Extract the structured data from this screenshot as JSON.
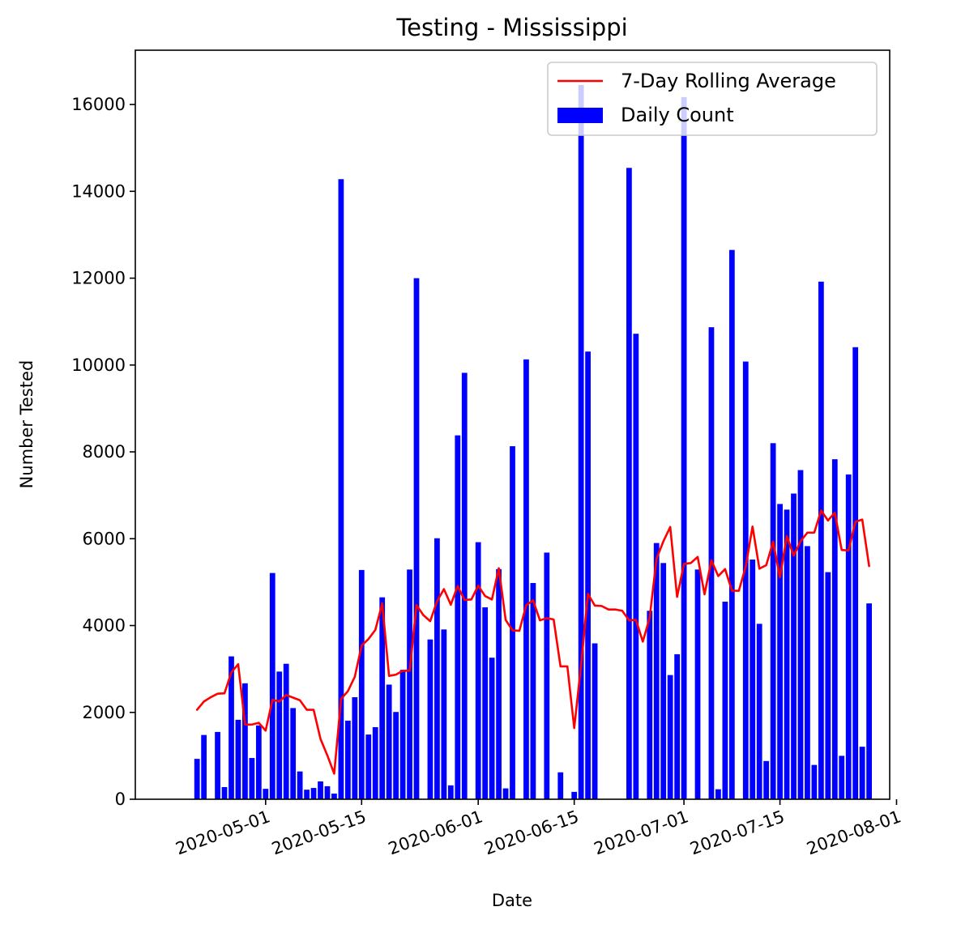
{
  "chart_data": {
    "type": "bar",
    "title": "Testing - Mississippi",
    "xlabel": "Date",
    "ylabel": "Number Tested",
    "x_axis": {
      "type": "date",
      "range": [
        "2020-04-12",
        "2020-07-31"
      ],
      "ticks": [
        "2020-05-01",
        "2020-05-15",
        "2020-06-01",
        "2020-06-15",
        "2020-07-01",
        "2020-07-15",
        "2020-08-01"
      ]
    },
    "y_axis": {
      "range": [
        0,
        17250
      ],
      "ticks": [
        0,
        2000,
        4000,
        6000,
        8000,
        10000,
        12000,
        14000,
        16000
      ]
    },
    "grid": false,
    "legend": {
      "position": "top-right",
      "entries": [
        {
          "label": "7-Day Rolling Average",
          "kind": "line",
          "color": "#ff0000"
        },
        {
          "label": "Daily Count",
          "kind": "bar",
          "color": "#0000ff"
        }
      ]
    },
    "series": [
      {
        "name": "Daily Count",
        "kind": "bar",
        "color": "#0000ff",
        "points": [
          [
            "2020-04-21",
            930
          ],
          [
            "2020-04-22",
            1480
          ],
          [
            "2020-04-24",
            1550
          ],
          [
            "2020-04-25",
            280
          ],
          [
            "2020-04-26",
            3290
          ],
          [
            "2020-04-27",
            1830
          ],
          [
            "2020-04-28",
            2670
          ],
          [
            "2020-04-29",
            950
          ],
          [
            "2020-04-30",
            1700
          ],
          [
            "2020-05-01",
            240
          ],
          [
            "2020-05-02",
            5210
          ],
          [
            "2020-05-03",
            2940
          ],
          [
            "2020-05-04",
            3120
          ],
          [
            "2020-05-05",
            2100
          ],
          [
            "2020-05-06",
            640
          ],
          [
            "2020-05-07",
            220
          ],
          [
            "2020-05-08",
            260
          ],
          [
            "2020-05-09",
            410
          ],
          [
            "2020-05-10",
            300
          ],
          [
            "2020-05-11",
            130
          ],
          [
            "2020-05-12",
            14280
          ],
          [
            "2020-05-13",
            1810
          ],
          [
            "2020-05-14",
            2350
          ],
          [
            "2020-05-15",
            5280
          ],
          [
            "2020-05-16",
            1490
          ],
          [
            "2020-05-17",
            1660
          ],
          [
            "2020-05-18",
            4650
          ],
          [
            "2020-05-19",
            2640
          ],
          [
            "2020-05-20",
            2010
          ],
          [
            "2020-05-21",
            2980
          ],
          [
            "2020-05-22",
            5290
          ],
          [
            "2020-05-23",
            12000
          ],
          [
            "2020-05-25",
            3680
          ],
          [
            "2020-05-26",
            6010
          ],
          [
            "2020-05-27",
            3910
          ],
          [
            "2020-05-28",
            320
          ],
          [
            "2020-05-29",
            8380
          ],
          [
            "2020-05-30",
            9820
          ],
          [
            "2020-06-01",
            5920
          ],
          [
            "2020-06-02",
            4420
          ],
          [
            "2020-06-03",
            3260
          ],
          [
            "2020-06-04",
            5300
          ],
          [
            "2020-06-05",
            250
          ],
          [
            "2020-06-06",
            8130
          ],
          [
            "2020-06-08",
            10130
          ],
          [
            "2020-06-09",
            4980
          ],
          [
            "2020-06-11",
            5680
          ],
          [
            "2020-06-13",
            620
          ],
          [
            "2020-06-15",
            170
          ],
          [
            "2020-06-16",
            16450
          ],
          [
            "2020-06-17",
            10310
          ],
          [
            "2020-06-18",
            3590
          ],
          [
            "2020-06-23",
            14540
          ],
          [
            "2020-06-24",
            10720
          ],
          [
            "2020-06-26",
            4340
          ],
          [
            "2020-06-27",
            5900
          ],
          [
            "2020-06-28",
            5440
          ],
          [
            "2020-06-29",
            2860
          ],
          [
            "2020-06-30",
            3340
          ],
          [
            "2020-07-01",
            16170
          ],
          [
            "2020-07-03",
            5290
          ],
          [
            "2020-07-05",
            10870
          ],
          [
            "2020-07-06",
            230
          ],
          [
            "2020-07-07",
            4550
          ],
          [
            "2020-07-08",
            12650
          ],
          [
            "2020-07-10",
            10080
          ],
          [
            "2020-07-11",
            5520
          ],
          [
            "2020-07-12",
            4040
          ],
          [
            "2020-07-13",
            880
          ],
          [
            "2020-07-14",
            8200
          ],
          [
            "2020-07-15",
            6800
          ],
          [
            "2020-07-16",
            6670
          ],
          [
            "2020-07-17",
            7040
          ],
          [
            "2020-07-18",
            7580
          ],
          [
            "2020-07-19",
            5830
          ],
          [
            "2020-07-20",
            790
          ],
          [
            "2020-07-21",
            11920
          ],
          [
            "2020-07-22",
            5230
          ],
          [
            "2020-07-23",
            7830
          ],
          [
            "2020-07-24",
            1000
          ],
          [
            "2020-07-25",
            7480
          ],
          [
            "2020-07-26",
            10410
          ],
          [
            "2020-07-27",
            1210
          ],
          [
            "2020-07-28",
            4510
          ]
        ]
      },
      {
        "name": "7-Day Rolling Average",
        "kind": "line",
        "color": "#ff0000",
        "points": [
          [
            "2020-04-21",
            2060
          ],
          [
            "2020-04-22",
            2250
          ],
          [
            "2020-04-23",
            2350
          ],
          [
            "2020-04-24",
            2430
          ],
          [
            "2020-04-25",
            2440
          ],
          [
            "2020-04-26",
            2920
          ],
          [
            "2020-04-27",
            3110
          ],
          [
            "2020-04-28",
            1720
          ],
          [
            "2020-04-29",
            1720
          ],
          [
            "2020-04-30",
            1760
          ],
          [
            "2020-05-01",
            1580
          ],
          [
            "2020-05-02",
            2290
          ],
          [
            "2020-05-03",
            2250
          ],
          [
            "2020-05-04",
            2400
          ],
          [
            "2020-05-05",
            2340
          ],
          [
            "2020-05-06",
            2280
          ],
          [
            "2020-05-07",
            2060
          ],
          [
            "2020-05-08",
            2060
          ],
          [
            "2020-05-09",
            1390
          ],
          [
            "2020-05-10",
            1010
          ],
          [
            "2020-05-11",
            590
          ],
          [
            "2020-05-12",
            2310
          ],
          [
            "2020-05-13",
            2490
          ],
          [
            "2020-05-14",
            2820
          ],
          [
            "2020-05-15",
            3540
          ],
          [
            "2020-05-16",
            3690
          ],
          [
            "2020-05-17",
            3900
          ],
          [
            "2020-05-18",
            4510
          ],
          [
            "2020-05-19",
            2840
          ],
          [
            "2020-05-20",
            2870
          ],
          [
            "2020-05-21",
            2960
          ],
          [
            "2020-05-22",
            2960
          ],
          [
            "2020-05-23",
            4470
          ],
          [
            "2020-05-24",
            4240
          ],
          [
            "2020-05-25",
            4100
          ],
          [
            "2020-05-26",
            4560
          ],
          [
            "2020-05-27",
            4840
          ],
          [
            "2020-05-28",
            4480
          ],
          [
            "2020-05-29",
            4910
          ],
          [
            "2020-05-30",
            4590
          ],
          [
            "2020-05-31",
            4600
          ],
          [
            "2020-06-01",
            4920
          ],
          [
            "2020-06-02",
            4680
          ],
          [
            "2020-06-03",
            4600
          ],
          [
            "2020-06-04",
            5320
          ],
          [
            "2020-06-05",
            4130
          ],
          [
            "2020-06-06",
            3890
          ],
          [
            "2020-06-07",
            3880
          ],
          [
            "2020-06-08",
            4470
          ],
          [
            "2020-06-09",
            4580
          ],
          [
            "2020-06-10",
            4120
          ],
          [
            "2020-06-11",
            4170
          ],
          [
            "2020-06-12",
            4140
          ],
          [
            "2020-06-13",
            3060
          ],
          [
            "2020-06-14",
            3060
          ],
          [
            "2020-06-15",
            1640
          ],
          [
            "2020-06-16",
            3090
          ],
          [
            "2020-06-17",
            4730
          ],
          [
            "2020-06-18",
            4460
          ],
          [
            "2020-06-19",
            4450
          ],
          [
            "2020-06-20",
            4370
          ],
          [
            "2020-06-21",
            4370
          ],
          [
            "2020-06-22",
            4340
          ],
          [
            "2020-06-23",
            4120
          ],
          [
            "2020-06-24",
            4130
          ],
          [
            "2020-06-25",
            3630
          ],
          [
            "2020-06-26",
            4180
          ],
          [
            "2020-06-27",
            5540
          ],
          [
            "2020-06-28",
            5940
          ],
          [
            "2020-06-29",
            6270
          ],
          [
            "2020-06-30",
            4660
          ],
          [
            "2020-07-01",
            5420
          ],
          [
            "2020-07-02",
            5440
          ],
          [
            "2020-07-03",
            5580
          ],
          [
            "2020-07-04",
            4720
          ],
          [
            "2020-07-05",
            5500
          ],
          [
            "2020-07-06",
            5140
          ],
          [
            "2020-07-07",
            5300
          ],
          [
            "2020-07-08",
            4800
          ],
          [
            "2020-07-09",
            4800
          ],
          [
            "2020-07-10",
            5350
          ],
          [
            "2020-07-11",
            6280
          ],
          [
            "2020-07-12",
            5310
          ],
          [
            "2020-07-13",
            5390
          ],
          [
            "2020-07-14",
            5930
          ],
          [
            "2020-07-15",
            5110
          ],
          [
            "2020-07-16",
            6060
          ],
          [
            "2020-07-17",
            5610
          ],
          [
            "2020-07-18",
            5940
          ],
          [
            "2020-07-19",
            6140
          ],
          [
            "2020-07-20",
            6140
          ],
          [
            "2020-07-21",
            6650
          ],
          [
            "2020-07-22",
            6420
          ],
          [
            "2020-07-23",
            6600
          ],
          [
            "2020-07-24",
            5740
          ],
          [
            "2020-07-25",
            5730
          ],
          [
            "2020-07-26",
            6390
          ],
          [
            "2020-07-27",
            6440
          ],
          [
            "2020-07-28",
            5370
          ]
        ]
      }
    ]
  }
}
